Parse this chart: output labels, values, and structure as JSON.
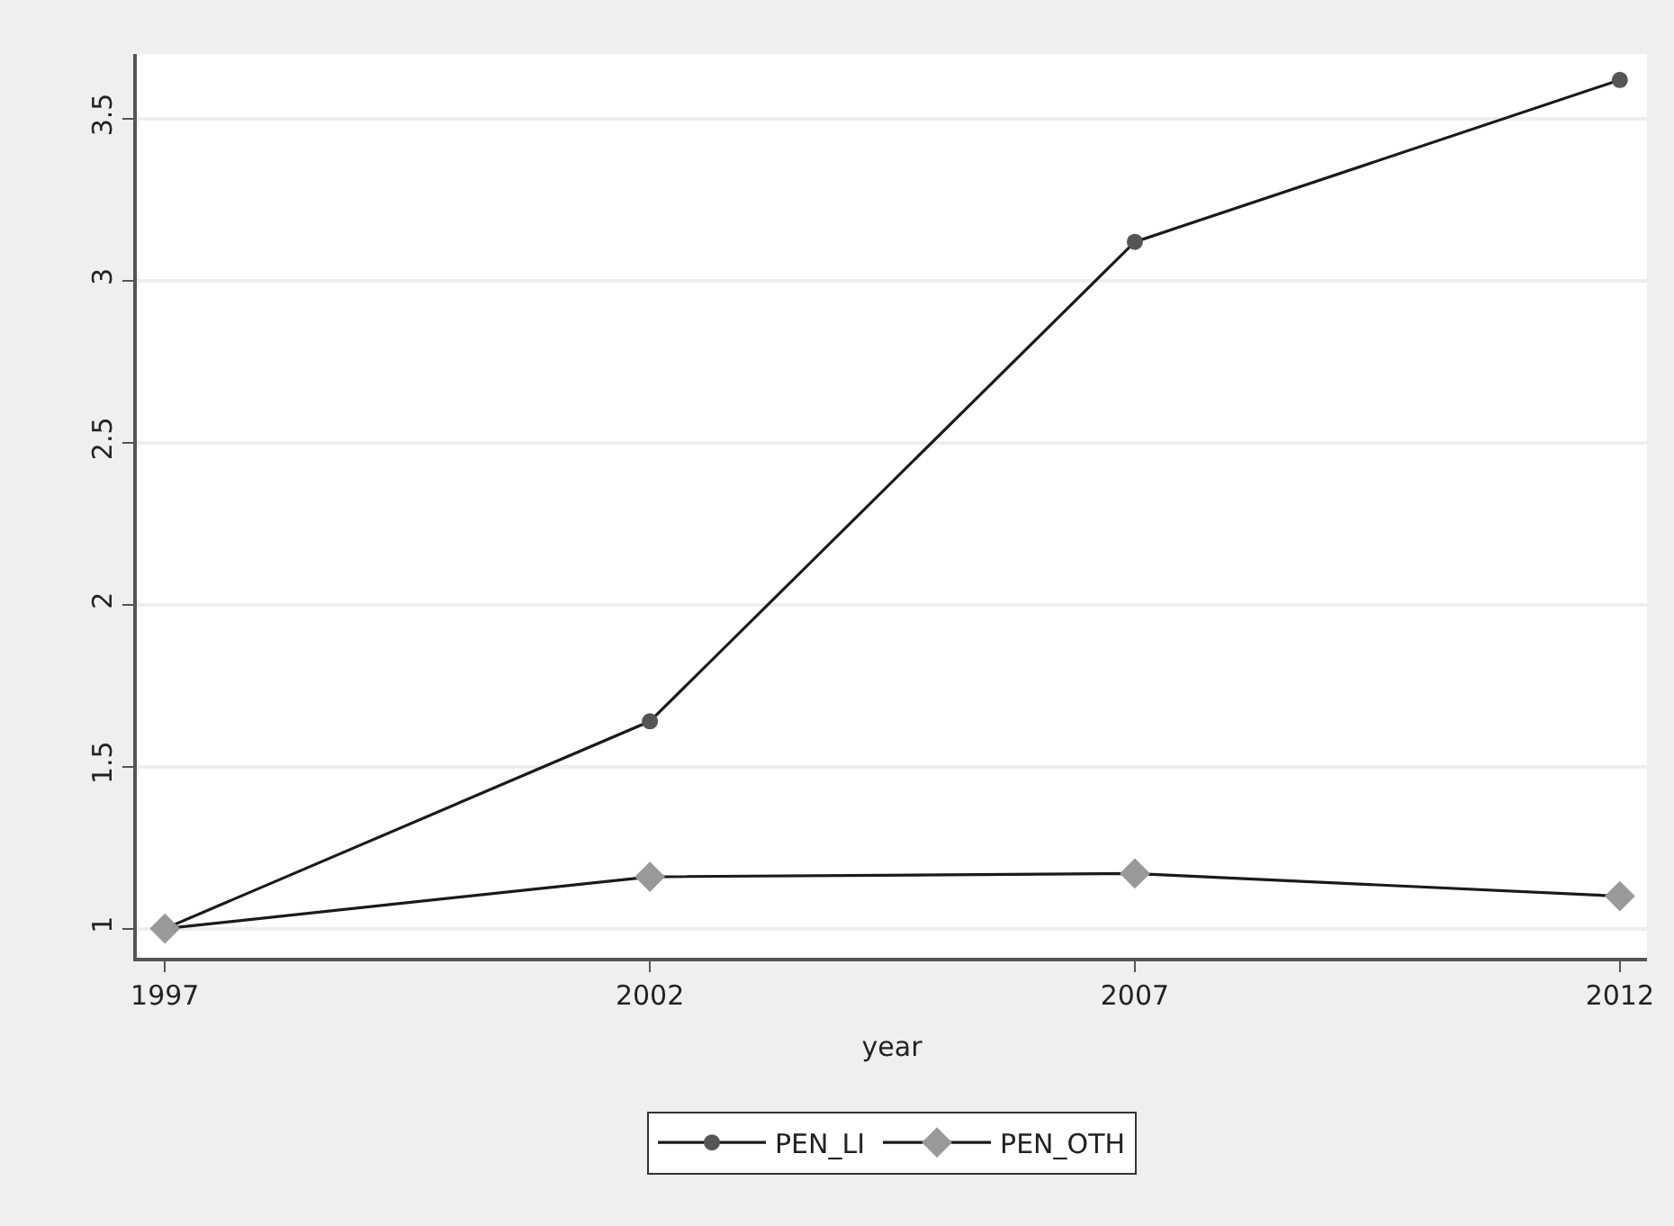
{
  "chart_data": {
    "type": "line",
    "xlabel": "year",
    "x": [
      1997,
      2002,
      2007,
      2012
    ],
    "series": [
      {
        "name": "PEN_LI",
        "color": "#555555",
        "marker": "circle",
        "values": [
          1,
          1.64,
          3.12,
          3.62
        ]
      },
      {
        "name": "PEN_OTH",
        "color": "#999999",
        "marker": "diamond",
        "values": [
          1,
          1.16,
          1.17,
          1.1
        ]
      }
    ],
    "xlim": [
      1996.71,
      2012.28
    ],
    "xticks": [
      1997,
      2002,
      2007,
      2012
    ],
    "ylim": [
      0.91,
      3.7
    ],
    "yticks": [
      1,
      1.5,
      2,
      2.5,
      3,
      3.5
    ],
    "grid": "y",
    "legend": "bottom",
    "line_style": "solid"
  }
}
